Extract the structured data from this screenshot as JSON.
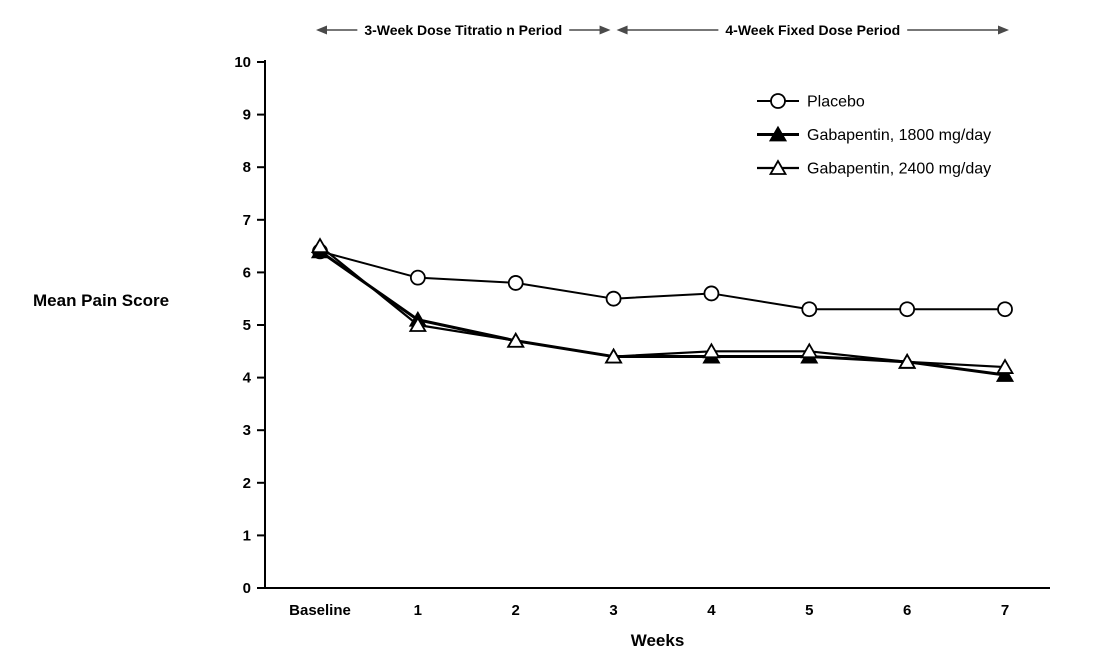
{
  "chart_data": {
    "type": "line",
    "title": "",
    "xlabel": "Weeks",
    "ylabel": "Mean Pain Score",
    "ylim": [
      0,
      10
    ],
    "yticks": [
      0,
      1,
      2,
      3,
      4,
      5,
      6,
      7,
      8,
      9,
      10
    ],
    "categories": [
      "Baseline",
      "1",
      "2",
      "3",
      "4",
      "5",
      "6",
      "7"
    ],
    "series": [
      {
        "name": "Placebo",
        "marker": "circle-open",
        "line_width": 2,
        "values": [
          6.4,
          5.9,
          5.8,
          5.5,
          5.6,
          5.3,
          5.3,
          5.3
        ]
      },
      {
        "name": "Gabapentin, 1800 mg/day",
        "marker": "triangle-filled",
        "line_width": 3,
        "values": [
          6.4,
          5.1,
          4.7,
          4.4,
          4.4,
          4.4,
          4.3,
          4.05
        ]
      },
      {
        "name": "Gabapentin, 2400 mg/day",
        "marker": "triangle-open",
        "line_width": 2.2,
        "values": [
          6.5,
          5.0,
          4.7,
          4.4,
          4.5,
          4.5,
          4.3,
          4.2
        ]
      }
    ],
    "annotations": [
      {
        "label": "3-Week Dose Titratio n Period",
        "from_category": 0,
        "to_category": 3
      },
      {
        "label": "4-Week Fixed Dose Period",
        "from_category": 3,
        "to_category": 7
      }
    ],
    "legend_position": "top-right",
    "grid": false,
    "colors": {
      "line": "#000000",
      "annotation_arrow": "#4a4a4a",
      "background": "#ffffff"
    }
  }
}
